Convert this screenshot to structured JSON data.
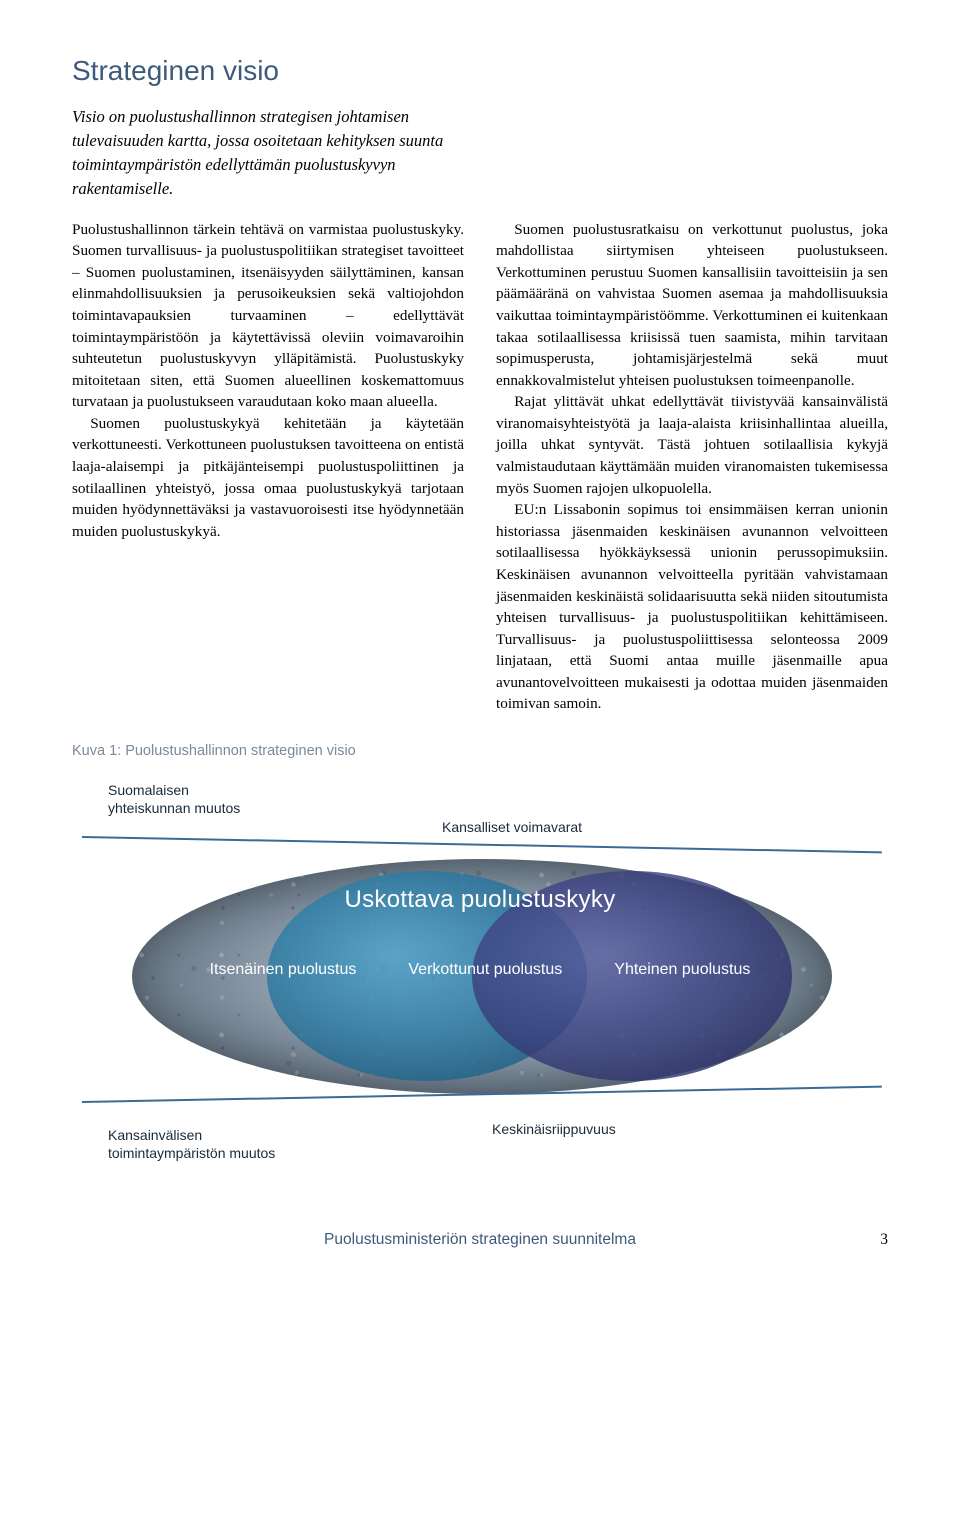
{
  "heading": "Strateginen visio",
  "intro": "Visio on puolustushallinnon strategisen johtamisen tulevaisuuden kartta, jossa osoitetaan kehityksen suunta toimintaympäristön edellyttämän puolustuskyvyn rakentamiselle.",
  "body": {
    "p1": "Puolustushallinnon tärkein tehtävä on varmistaa puolustuskyky. Suomen turvallisuus- ja puolustuspolitiikan strategiset tavoitteet – Suomen puolustaminen, itsenäisyyden säilyttäminen, kansan elinmahdollisuuksien ja perusoikeuksien sekä valtiojohdon toimintavapauksien turvaaminen – edellyttävät toimintaympäristöön ja käytettävissä oleviin voimavaroihin suhteutetun puolustuskyvyn ylläpitämistä. Puolustuskyky mitoitetaan siten, että Suomen alueellinen koskemattomuus turvataan ja puolustukseen varaudutaan koko maan alueella.",
    "p2": "Suomen puolustuskykyä kehitetään ja käytetään verkottuneesti. Verkottuneen puolustuksen tavoitteena on entistä laaja-alaisempi ja pitkäjänteisempi puolustuspoliittinen ja sotilaallinen yhteistyö, jossa omaa puolustuskykyä tarjotaan muiden hyödynnettäväksi ja vastavuoroisesti itse hyödynnetään muiden puolustuskykyä.",
    "p3": "Suomen puolustusratkaisu on verkottunut puolustus, joka mahdollistaa siirtymisen yhteiseen puolustukseen. Verkottuminen perustuu Suomen kansallisiin tavoitteisiin ja sen päämääränä on vahvistaa Suomen asemaa ja mahdollisuuksia vaikuttaa toimintaympäristöömme. Verkottuminen ei kuitenkaan takaa sotilaallisessa kriisissä tuen saamista, mihin tarvitaan sopimusperusta, johtamisjärjestelmä sekä muut ennakkovalmistelut yhteisen puolustuksen toimeenpanolle.",
    "p4": "Rajat ylittävät uhkat edellyttävät tiivistyvää kansainvälistä viranomaisyhteistyötä ja laaja-alaista kriisinhallintaa alueilla, joilla uhkat syntyvät. Tästä johtuen sotilaallisia kykyjä valmistaudutaan käyttämään muiden viranomaisten tukemisessa myös Suomen rajojen ulkopuolella.",
    "p5": "EU:n Lissabonin sopimus toi ensimmäisen kerran unionin historiassa jäsenmaiden keskinäisen avunannon velvoitteen sotilaallisessa hyökkäyksessä unionin perussopimuksiin. Keskinäisen avunannon velvoitteella pyritään vahvistamaan jäsenmaiden keskinäistä solidaarisuutta sekä niiden sitoutumista yhteisen turvallisuus- ja puolustuspolitiikan kehittämiseen. Turvallisuus- ja puolustuspoliittisessa selonteossa 2009 linjataan, että Suomi antaa muille jäsenmaille apua avunantovelvoitteen mukaisesti ja odottaa muiden jäsenmaiden toimivan samoin."
  },
  "caption": "Kuva 1: Puolustushallinnon strateginen visio",
  "diagram": {
    "top_label_line1": "Suomalaisen",
    "top_label_line2": "yhteiskunnan muutos",
    "mid_label": "Kansalliset voimavarat",
    "title": "Uskottava puolustuskyky",
    "label1": "Itsenäinen puolustus",
    "label2": "Verkottunut puolustus",
    "label3": "Yhteinen puolustus",
    "bot_left_line1": "Kansainvälisen",
    "bot_left_line2": "toimintaympäristön muutos",
    "bot_right": "Keskinäisriippuvuus",
    "colors": {
      "rule": "#3b6b95",
      "ellipse_bg": "#7b8a99",
      "circle_left": "#2f7fa8",
      "circle_right": "#3f4585",
      "text_on_shape": "#ffffff",
      "label_color": "#1a2a3a"
    }
  },
  "footer": {
    "title": "Puolustusministeriön strateginen suunnitelma",
    "page": "3"
  }
}
